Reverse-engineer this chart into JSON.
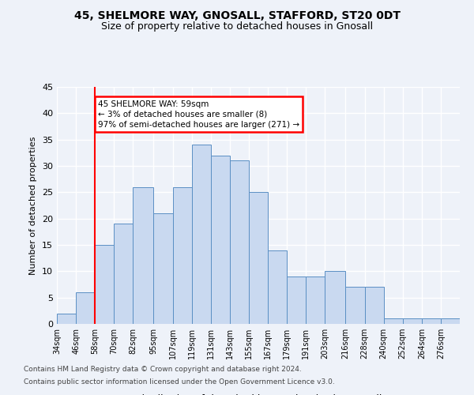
{
  "title1": "45, SHELMORE WAY, GNOSALL, STAFFORD, ST20 0DT",
  "title2": "Size of property relative to detached houses in Gnosall",
  "xlabel": "Distribution of detached houses by size in Gnosall",
  "ylabel": "Number of detached properties",
  "footnote1": "Contains HM Land Registry data © Crown copyright and database right 2024.",
  "footnote2": "Contains public sector information licensed under the Open Government Licence v3.0.",
  "bin_labels": [
    "34sqm",
    "46sqm",
    "58sqm",
    "70sqm",
    "82sqm",
    "95sqm",
    "107sqm",
    "119sqm",
    "131sqm",
    "143sqm",
    "155sqm",
    "167sqm",
    "179sqm",
    "191sqm",
    "203sqm",
    "216sqm",
    "228sqm",
    "240sqm",
    "252sqm",
    "264sqm",
    "276sqm"
  ],
  "bin_edges": [
    34,
    46,
    58,
    70,
    82,
    95,
    107,
    119,
    131,
    143,
    155,
    167,
    179,
    191,
    203,
    216,
    228,
    240,
    252,
    264,
    276
  ],
  "values": [
    2,
    6,
    15,
    19,
    26,
    21,
    26,
    34,
    32,
    31,
    25,
    14,
    9,
    9,
    10,
    7,
    7,
    1,
    1,
    1,
    1
  ],
  "bar_color": "#c9d9f0",
  "bar_edge_color": "#5a8fc4",
  "property_line_x": 58,
  "annotation_line1": "45 SHELMORE WAY: 59sqm",
  "annotation_line2": "← 3% of detached houses are smaller (8)",
  "annotation_line3": "97% of semi-detached houses are larger (271) →",
  "annotation_box_color": "white",
  "annotation_box_edge_color": "red",
  "line_color": "red",
  "ylim": [
    0,
    45
  ],
  "yticks": [
    0,
    5,
    10,
    15,
    20,
    25,
    30,
    35,
    40,
    45
  ],
  "background_color": "#eef2f9",
  "grid_color": "white"
}
